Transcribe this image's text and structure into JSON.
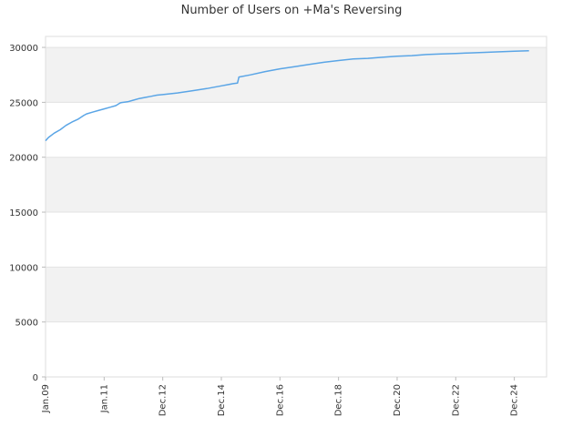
{
  "chart_data": {
    "type": "line",
    "title": "Number of Users on +Ma's Reversing",
    "xlabel": "",
    "ylabel": "",
    "ylim": [
      0,
      31000
    ],
    "y_ticks": [
      0,
      5000,
      10000,
      15000,
      20000,
      25000,
      30000
    ],
    "x_tick_labels": [
      "Jan.09",
      "Jan.11",
      "Dec.12",
      "Dec.14",
      "Dec.16",
      "Dec.18",
      "Dec.20",
      "Dec.22",
      "Dec.24"
    ],
    "x_tick_positions": [
      0,
      2,
      4,
      6,
      8,
      10,
      12,
      14,
      16
    ],
    "x_range": [
      0,
      17.1
    ],
    "grid": "horizontal bands",
    "legend": "none",
    "series": [
      {
        "color": "#5aa5e6",
        "x": [
          0.0,
          0.1,
          0.3,
          0.5,
          0.7,
          0.9,
          1.1,
          1.3,
          1.4,
          1.6,
          1.8,
          2.0,
          2.2,
          2.4,
          2.55,
          2.6,
          2.8,
          3.0,
          3.2,
          3.4,
          3.6,
          3.8,
          4.0,
          4.5,
          5.0,
          5.5,
          6.0,
          6.4,
          6.55,
          6.6,
          7.0,
          7.5,
          8.0,
          8.5,
          9.0,
          9.5,
          10.0,
          10.5,
          11.0,
          11.5,
          12.0,
          12.5,
          13.0,
          13.5,
          14.0,
          14.5,
          15.0,
          15.5,
          16.0,
          16.5
        ],
        "y": [
          21500,
          21800,
          22200,
          22500,
          22900,
          23200,
          23450,
          23800,
          23950,
          24100,
          24250,
          24400,
          24550,
          24700,
          24950,
          24980,
          25050,
          25200,
          25350,
          25450,
          25550,
          25650,
          25700,
          25850,
          26050,
          26250,
          26500,
          26700,
          26750,
          27300,
          27500,
          27800,
          28050,
          28250,
          28450,
          28650,
          28800,
          28950,
          29000,
          29100,
          29200,
          29250,
          29350,
          29400,
          29450,
          29500,
          29550,
          29600,
          29650,
          29700
        ]
      }
    ]
  }
}
